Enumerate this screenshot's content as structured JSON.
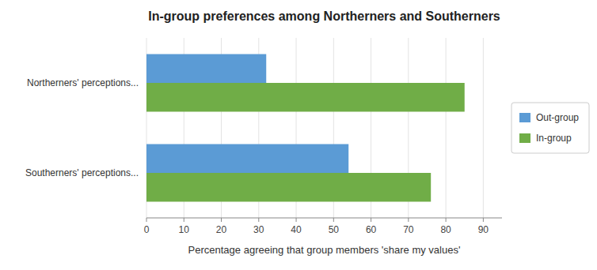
{
  "chart_data": {
    "type": "bar",
    "orientation": "horizontal",
    "title": "In-group preferences among Northerners and Southerners",
    "xlabel": "Percentage agreeing that group members 'share my values'",
    "categories": [
      "Northerners' perceptions...",
      "Southerners' perceptions..."
    ],
    "series": [
      {
        "name": "Out-group",
        "color": "#5B9BD5",
        "values": [
          32,
          54
        ]
      },
      {
        "name": "In-group",
        "color": "#70AD47",
        "values": [
          85,
          76
        ]
      }
    ],
    "xlim": [
      0,
      95
    ],
    "xticks": [
      0,
      10,
      20,
      30,
      40,
      50,
      60,
      70,
      80,
      90
    ],
    "grid": true,
    "legend": "right"
  }
}
